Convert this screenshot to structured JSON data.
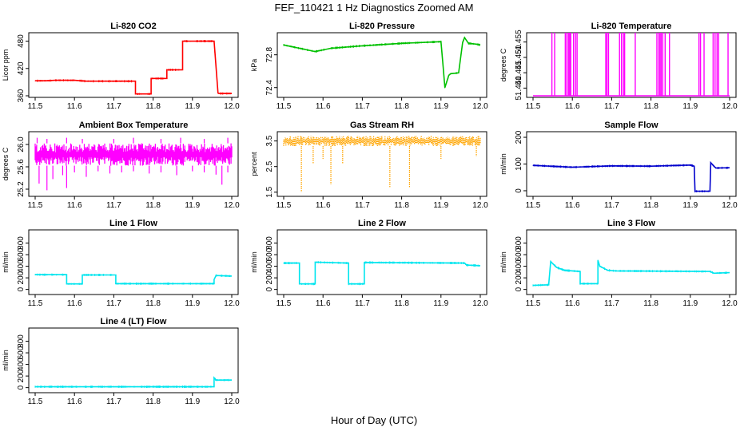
{
  "figure": {
    "title": "FEF_110421 1 Hz Diagnostics Zoomed AM",
    "xlabel": "Hour of Day (UTC)"
  },
  "chart_data": [
    {
      "type": "line",
      "title": "Li-820 CO2",
      "ylabel": "Licor ppm",
      "color": "#ff0000",
      "xlim": [
        11.5,
        12.0
      ],
      "ylim": [
        360,
        495
      ],
      "xticks": [
        "11.5",
        "11.6",
        "11.7",
        "11.8",
        "11.9",
        "12.0"
      ],
      "yticks": [
        360,
        420,
        480
      ],
      "yticklabels": [
        "360",
        "420",
        "480"
      ],
      "x": [
        11.5,
        11.53,
        11.55,
        11.6,
        11.63,
        11.7,
        11.755,
        11.755,
        11.795,
        11.795,
        11.835,
        11.835,
        11.875,
        11.875,
        11.955,
        11.965,
        11.967,
        12.0
      ],
      "y": [
        393,
        393,
        394,
        394,
        392,
        392,
        392,
        364,
        364,
        398,
        398,
        417,
        417,
        480,
        480,
        366,
        365,
        365
      ]
    },
    {
      "type": "line",
      "title": "Li-820 Pressure",
      "ylabel": "kPa",
      "color": "#00c000",
      "xlim": [
        11.5,
        12.0
      ],
      "ylim": [
        72.3,
        73.05
      ],
      "xticks": [
        "11.5",
        "11.6",
        "11.7",
        "11.8",
        "11.9",
        "12.0"
      ],
      "yticks": [
        72.4,
        72.8
      ],
      "yticklabels": [
        "72.4",
        "72.8"
      ],
      "x": [
        11.5,
        11.55,
        11.58,
        11.62,
        11.7,
        11.8,
        11.9,
        11.905,
        11.91,
        11.92,
        11.925,
        11.945,
        11.955,
        11.96,
        11.97,
        11.99,
        12.0
      ],
      "y": [
        72.92,
        72.87,
        72.84,
        72.88,
        72.91,
        72.94,
        72.96,
        72.68,
        72.4,
        72.55,
        72.57,
        72.58,
        72.95,
        73.01,
        72.94,
        72.93,
        72.92
      ]
    },
    {
      "type": "line",
      "title": "Li-820 Temperature",
      "ylabel": "degrees C",
      "color": "#ff00ff",
      "xlim": [
        11.5,
        12.0
      ],
      "ylim": [
        51.4375,
        51.4575
      ],
      "xticks": [
        "11.5",
        "11.6",
        "11.7",
        "11.8",
        "11.9",
        "12.0"
      ],
      "yticks": [
        51.44,
        51.445,
        51.45,
        51.455
      ],
      "yticklabels": [
        "51.440",
        "51.445",
        "51.450",
        "51.455"
      ],
      "baseline": 51.4375,
      "spike_top": 51.4575,
      "spike_x": [
        11.548,
        11.555,
        11.582,
        11.586,
        11.59,
        11.593,
        11.596,
        11.603,
        11.608,
        11.612,
        11.685,
        11.688,
        11.692,
        11.72,
        11.725,
        11.73,
        11.733,
        11.76,
        11.815,
        11.82,
        11.823,
        11.826,
        11.83,
        11.836,
        11.847,
        11.922,
        11.926,
        11.935,
        11.958,
        11.963,
        11.968,
        11.972,
        11.996
      ]
    },
    {
      "type": "line",
      "title": "Ambient Box Temperature",
      "ylabel": "degrees C",
      "color": "#ff00ff",
      "xlim": [
        11.5,
        12.0
      ],
      "ylim": [
        25.1,
        26.2
      ],
      "xticks": [
        "11.5",
        "11.6",
        "11.7",
        "11.8",
        "11.9",
        "12.0"
      ],
      "yticks": [
        25.2,
        25.6,
        26.0
      ],
      "yticklabels": [
        "25.2",
        "25.6",
        "26.0"
      ],
      "band_low": 25.62,
      "band_high": 26.02,
      "dips_x": [
        11.51,
        11.53,
        11.545,
        11.57,
        11.58,
        11.6,
        11.63,
        11.66,
        11.69,
        11.72,
        11.75,
        11.79,
        11.82,
        11.86,
        11.9,
        11.93,
        11.96,
        11.975,
        11.99
      ],
      "dips_y": [
        25.3,
        25.18,
        25.38,
        25.45,
        25.22,
        25.5,
        25.42,
        25.52,
        25.48,
        25.5,
        25.52,
        25.48,
        25.5,
        25.45,
        25.52,
        25.5,
        25.46,
        25.28,
        25.5
      ],
      "peaks_x": [
        11.505,
        11.53,
        11.58,
        11.62,
        11.7,
        11.75,
        11.82,
        11.87,
        11.93,
        11.99
      ],
      "peaks_y": [
        26.12,
        26.1,
        26.12,
        26.1,
        26.1,
        26.12,
        26.1,
        26.12,
        26.1,
        26.12
      ]
    },
    {
      "type": "scatter",
      "title": "Gas Stream RH",
      "ylabel": "percent",
      "color": "#ffa500",
      "xlim": [
        11.5,
        12.0
      ],
      "ylim": [
        1.4,
        3.8
      ],
      "xticks": [
        "11.5",
        "11.6",
        "11.7",
        "11.8",
        "11.9",
        "12.0"
      ],
      "yticks": [
        1.5,
        2.5,
        3.5
      ],
      "yticklabels": [
        "1.5",
        "2.5",
        "3.5"
      ],
      "band_low": 3.3,
      "band_high": 3.7,
      "dips_x": [
        11.545,
        11.575,
        11.6,
        11.62,
        11.65,
        11.77,
        11.82,
        11.9,
        11.99
      ],
      "dips_y": [
        1.5,
        2.6,
        2.8,
        1.8,
        2.6,
        1.7,
        1.7,
        2.8,
        2.9
      ]
    },
    {
      "type": "line",
      "title": "Sample Flow",
      "ylabel": "ml/min",
      "color": "#0000cc",
      "xlim": [
        11.5,
        12.0
      ],
      "ylim": [
        -15,
        215
      ],
      "xticks": [
        "11.5",
        "11.6",
        "11.7",
        "11.8",
        "11.9",
        "12.0"
      ],
      "yticks": [
        0,
        100,
        200
      ],
      "yticklabels": [
        "0",
        "100",
        "200"
      ],
      "x": [
        11.5,
        11.6,
        11.7,
        11.8,
        11.9,
        11.91,
        11.912,
        11.95,
        11.952,
        11.96,
        11.965,
        12.0
      ],
      "y": [
        95,
        88,
        93,
        92,
        96,
        92,
        -2,
        -2,
        105,
        92,
        85,
        86
      ]
    },
    {
      "type": "line",
      "title": "Line 1 Flow",
      "ylabel": "ml/min",
      "color": "#00e5ee",
      "xlim": [
        11.5,
        12.0
      ],
      "ylim": [
        -60,
        1000
      ],
      "xticks": [
        "11.5",
        "11.6",
        "11.7",
        "11.8",
        "11.9",
        "12.0"
      ],
      "yticks": [
        0,
        200,
        400,
        600,
        800
      ],
      "yticklabels": [
        "0",
        "200",
        "400",
        "600",
        "800"
      ],
      "x": [
        11.5,
        11.58,
        11.58,
        11.62,
        11.62,
        11.705,
        11.705,
        11.955,
        11.955,
        11.96,
        12.0
      ],
      "y": [
        255,
        255,
        95,
        95,
        250,
        250,
        100,
        100,
        170,
        240,
        230
      ]
    },
    {
      "type": "line",
      "title": "Line 2 Flow",
      "ylabel": "ml/min",
      "color": "#00e5ee",
      "xlim": [
        11.5,
        12.0
      ],
      "ylim": [
        -60,
        1000
      ],
      "xticks": [
        "11.5",
        "11.6",
        "11.7",
        "11.8",
        "11.9",
        "12.0"
      ],
      "yticks": [
        0,
        200,
        400,
        600,
        800
      ],
      "yticklabels": [
        "0",
        "200",
        "400",
        "600",
        "800"
      ],
      "x": [
        11.5,
        11.54,
        11.54,
        11.58,
        11.58,
        11.665,
        11.665,
        11.705,
        11.705,
        11.96,
        11.965,
        12.0
      ],
      "y": [
        455,
        455,
        95,
        95,
        470,
        455,
        95,
        95,
        465,
        455,
        420,
        410
      ]
    },
    {
      "type": "line",
      "title": "Line 3 Flow",
      "ylabel": "ml/min",
      "color": "#00e5ee",
      "xlim": [
        11.5,
        12.0
      ],
      "ylim": [
        -60,
        1000
      ],
      "xticks": [
        "11.5",
        "11.6",
        "11.7",
        "11.8",
        "11.9",
        "12.0"
      ],
      "yticks": [
        0,
        200,
        400,
        600,
        800
      ],
      "yticklabels": [
        "0",
        "200",
        "400",
        "600",
        "800"
      ],
      "x": [
        11.5,
        11.54,
        11.54,
        11.545,
        11.56,
        11.58,
        11.62,
        11.62,
        11.665,
        11.665,
        11.67,
        11.69,
        11.71,
        11.95,
        11.96,
        12.0
      ],
      "y": [
        70,
        80,
        100,
        480,
        380,
        330,
        310,
        100,
        100,
        500,
        400,
        330,
        320,
        310,
        280,
        290
      ]
    },
    {
      "type": "line",
      "title": "Line 4 (LT) Flow",
      "ylabel": "ml/min",
      "color": "#00e5ee",
      "xlim": [
        11.5,
        12.0
      ],
      "ylim": [
        -60,
        1000
      ],
      "xticks": [
        "11.5",
        "11.6",
        "11.7",
        "11.8",
        "11.9",
        "12.0"
      ],
      "yticks": [
        0,
        200,
        400,
        600,
        800
      ],
      "yticklabels": [
        "0",
        "200",
        "400",
        "600",
        "800"
      ],
      "x": [
        11.5,
        11.955,
        11.955,
        11.96,
        12.0
      ],
      "y": [
        15,
        15,
        170,
        130,
        130
      ]
    }
  ]
}
